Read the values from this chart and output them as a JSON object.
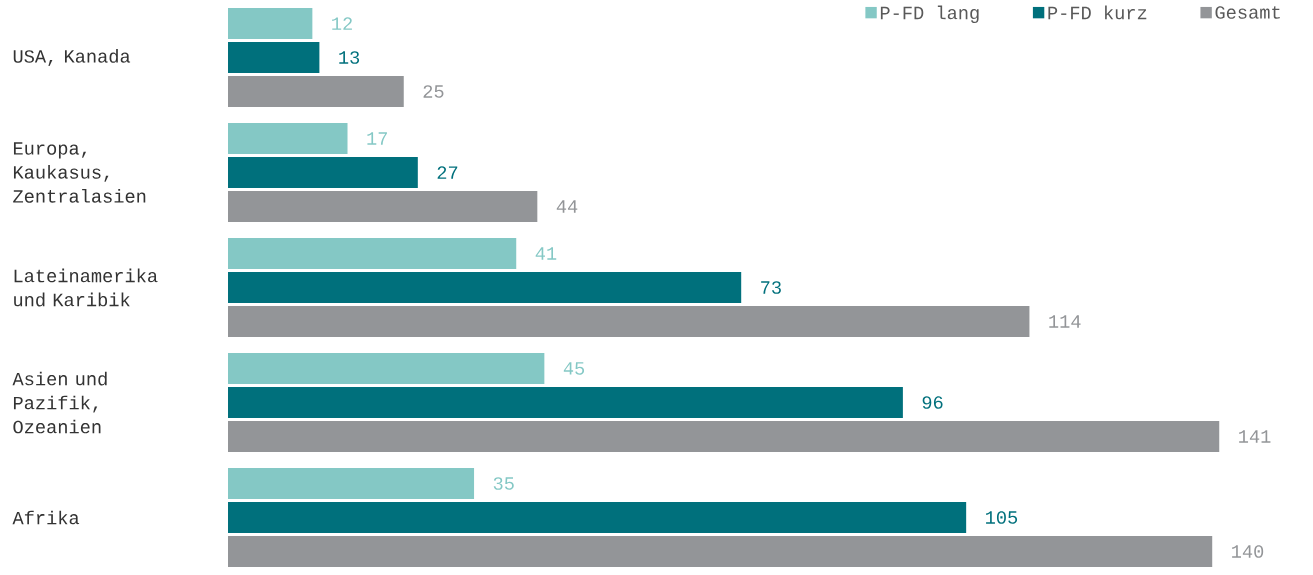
{
  "chart_data": {
    "type": "bar",
    "orientation": "horizontal",
    "categories": [
      "USA, Kanada",
      "Europa, Kaukasus, Zentralasien",
      "Lateinamerika und Karibik",
      "Asien und Pazifik, Ozeanien",
      "Afrika"
    ],
    "series": [
      {
        "name": "P-FD lang",
        "color": "#84c8c5",
        "values": [
          12,
          17,
          41,
          45,
          35
        ]
      },
      {
        "name": "P-FD kurz",
        "color": "#00707c",
        "values": [
          13,
          27,
          73,
          96,
          105
        ]
      },
      {
        "name": "Gesamt",
        "color": "#939598",
        "values": [
          25,
          44,
          114,
          141,
          140
        ]
      }
    ],
    "data_labels": true,
    "legend": "top right"
  }
}
